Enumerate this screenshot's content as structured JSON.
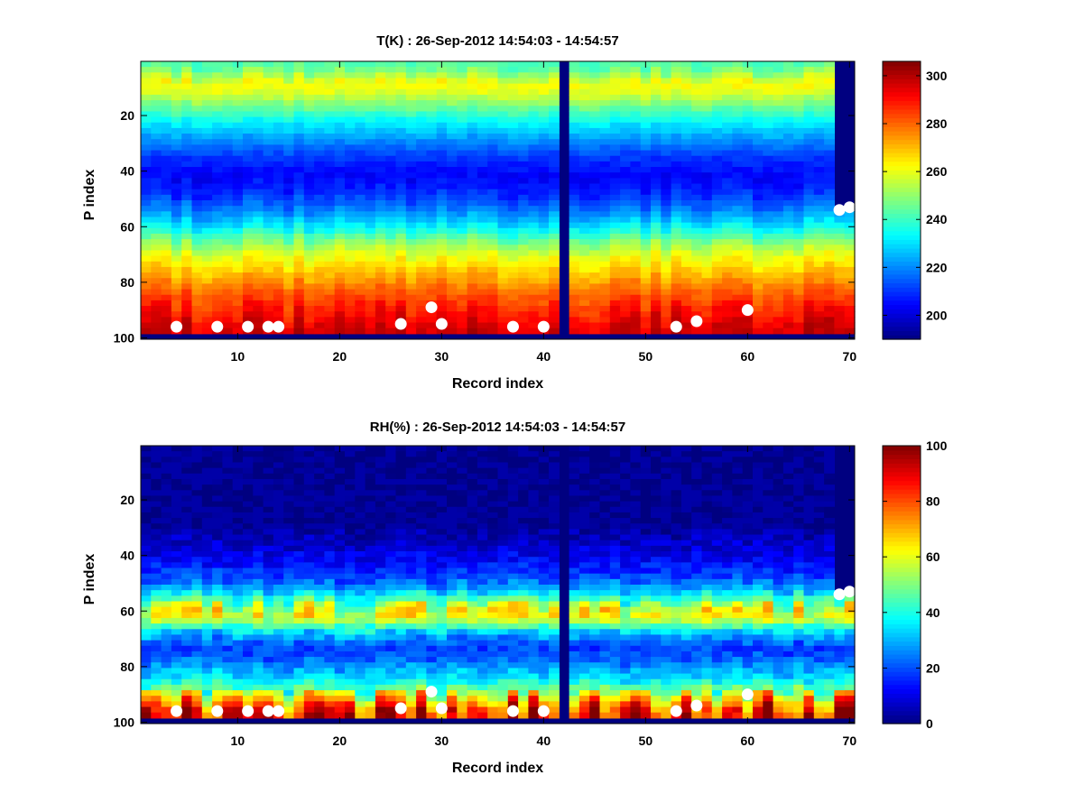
{
  "chart_data": [
    {
      "type": "heatmap",
      "title": "T(K) : 26-Sep-2012 14:54:03 - 14:54:57",
      "xlabel": "Record index",
      "ylabel": "P index",
      "xlim": [
        0.5,
        70.5
      ],
      "ylim": [
        0.5,
        100.5
      ],
      "y_reversed": true,
      "x_ticks": [
        10,
        20,
        30,
        40,
        50,
        60,
        70
      ],
      "y_ticks": [
        20,
        40,
        60,
        80,
        100
      ],
      "colormap": "jet",
      "clim": [
        190,
        306
      ],
      "colorbar_ticks": [
        200,
        220,
        240,
        260,
        280,
        300
      ],
      "vertical_profile": [
        {
          "p": 3,
          "v": 243
        },
        {
          "p": 6,
          "v": 252
        },
        {
          "p": 9,
          "v": 262
        },
        {
          "p": 12,
          "v": 260
        },
        {
          "p": 15,
          "v": 252
        },
        {
          "p": 19,
          "v": 242
        },
        {
          "p": 24,
          "v": 231
        },
        {
          "p": 30,
          "v": 220
        },
        {
          "p": 36,
          "v": 210
        },
        {
          "p": 42,
          "v": 204
        },
        {
          "p": 48,
          "v": 208
        },
        {
          "p": 53,
          "v": 216
        },
        {
          "p": 58,
          "v": 226
        },
        {
          "p": 62,
          "v": 236
        },
        {
          "p": 66,
          "v": 248
        },
        {
          "p": 70,
          "v": 258
        },
        {
          "p": 75,
          "v": 266
        },
        {
          "p": 80,
          "v": 274
        },
        {
          "p": 85,
          "v": 282
        },
        {
          "p": 90,
          "v": 288
        },
        {
          "p": 94,
          "v": 292
        },
        {
          "p": 97,
          "v": 296
        }
      ],
      "missing_columns": [
        42
      ],
      "surface_index": 98,
      "partial_columns": [
        {
          "record": 69,
          "top_index": 54
        },
        {
          "record": 70,
          "top_index": 53
        }
      ],
      "markers": [
        {
          "x": 4,
          "y": 96
        },
        {
          "x": 8,
          "y": 96
        },
        {
          "x": 11,
          "y": 96
        },
        {
          "x": 13,
          "y": 96
        },
        {
          "x": 14,
          "y": 96
        },
        {
          "x": 26,
          "y": 95
        },
        {
          "x": 29,
          "y": 89
        },
        {
          "x": 30,
          "y": 95
        },
        {
          "x": 37,
          "y": 96
        },
        {
          "x": 40,
          "y": 96
        },
        {
          "x": 53,
          "y": 96
        },
        {
          "x": 55,
          "y": 94
        },
        {
          "x": 60,
          "y": 90
        },
        {
          "x": 69,
          "y": 54
        },
        {
          "x": 70,
          "y": 53
        }
      ]
    },
    {
      "type": "heatmap",
      "title": "RH(%) : 26-Sep-2012 14:54:03 - 14:54:57",
      "xlabel": "Record index",
      "ylabel": "P index",
      "xlim": [
        0.5,
        70.5
      ],
      "ylim": [
        0.5,
        100.5
      ],
      "y_reversed": true,
      "x_ticks": [
        10,
        20,
        30,
        40,
        50,
        60,
        70
      ],
      "y_ticks": [
        20,
        40,
        60,
        80,
        100
      ],
      "colormap": "jet",
      "clim": [
        0,
        100
      ],
      "colorbar_ticks": [
        0,
        20,
        40,
        60,
        80,
        100
      ],
      "vertical_profile": [
        {
          "p": 1,
          "v": 1
        },
        {
          "p": 30,
          "v": 3
        },
        {
          "p": 38,
          "v": 8
        },
        {
          "p": 44,
          "v": 14
        },
        {
          "p": 49,
          "v": 20
        },
        {
          "p": 53,
          "v": 30
        },
        {
          "p": 56,
          "v": 44
        },
        {
          "p": 59,
          "v": 56
        },
        {
          "p": 62,
          "v": 64
        },
        {
          "p": 65,
          "v": 50
        },
        {
          "p": 68,
          "v": 34
        },
        {
          "p": 71,
          "v": 24
        },
        {
          "p": 74,
          "v": 18
        },
        {
          "p": 78,
          "v": 22
        },
        {
          "p": 82,
          "v": 30
        },
        {
          "p": 86,
          "v": 38
        },
        {
          "p": 89,
          "v": 50
        },
        {
          "p": 92,
          "v": 66
        },
        {
          "p": 95,
          "v": 78
        },
        {
          "p": 97,
          "v": 84
        }
      ],
      "missing_columns": [
        42
      ],
      "surface_index": 98,
      "partial_columns": [
        {
          "record": 69,
          "top_index": 54
        },
        {
          "record": 70,
          "top_index": 53
        }
      ],
      "markers": [
        {
          "x": 4,
          "y": 96
        },
        {
          "x": 8,
          "y": 96
        },
        {
          "x": 11,
          "y": 96
        },
        {
          "x": 13,
          "y": 96
        },
        {
          "x": 14,
          "y": 96
        },
        {
          "x": 26,
          "y": 95
        },
        {
          "x": 29,
          "y": 89
        },
        {
          "x": 30,
          "y": 95
        },
        {
          "x": 37,
          "y": 96
        },
        {
          "x": 40,
          "y": 96
        },
        {
          "x": 53,
          "y": 96
        },
        {
          "x": 55,
          "y": 94
        },
        {
          "x": 60,
          "y": 90
        },
        {
          "x": 69,
          "y": 54
        },
        {
          "x": 70,
          "y": 53
        }
      ]
    }
  ]
}
